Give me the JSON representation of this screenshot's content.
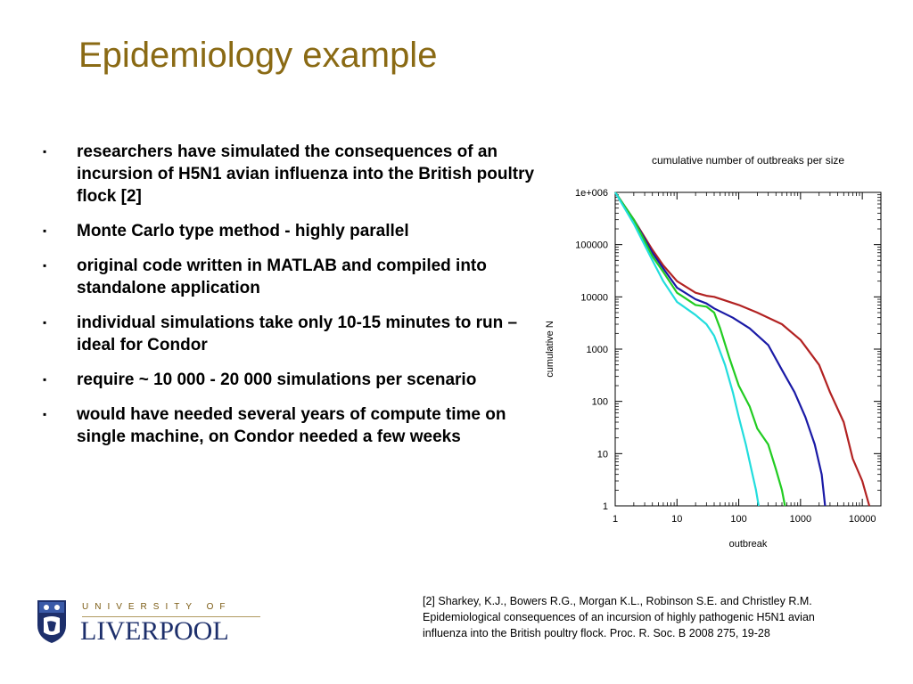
{
  "slide": {
    "title": "Epidemiology example",
    "bullets": [
      "researchers have simulated the consequences of an incursion of H5N1 avian influenza into the British poultry flock [2]",
      "Monte Carlo type method - highly parallel",
      "original code written in MATLAB and compiled into standalone application",
      "individual simulations take only 10-15 minutes to run – ideal for Condor",
      "require ~ 10 000 - 20 000 simulations per scenario",
      "would have needed several years of compute time on single machine, on Condor needed a few weeks"
    ],
    "bullet_mark": "▪",
    "reference": {
      "lines": [
        "[2] Sharkey, K.J., Bowers R.G., Morgan K.L., Robinson S.E. and Christley R.M.",
        "Epidemiological consequences of an incursion of highly pathogenic H5N1 avian",
        "influenza into the British poultry flock. Proc. R. Soc. B 2008 275, 19-28"
      ]
    },
    "logo": {
      "top_text": "UNIVERSITY OF",
      "name": "LIVERPOOL",
      "crest_icon": "liverpool-crest-icon"
    }
  },
  "chart_data": {
    "type": "line",
    "title": "cumulative number of outbreaks per size",
    "xlabel": "outbreak",
    "ylabel": "cumulative N",
    "xscale": "log",
    "yscale": "log",
    "xlim": [
      1,
      20000
    ],
    "ylim": [
      1,
      1000000
    ],
    "x_ticks": [
      1,
      10,
      100,
      1000,
      10000
    ],
    "x_tick_labels": [
      "1",
      "10",
      "100",
      "1000",
      "10000"
    ],
    "y_ticks": [
      1,
      10,
      100,
      1000,
      10000,
      100000,
      1000000
    ],
    "y_tick_labels": [
      "1",
      "10",
      "100",
      "1000",
      "10000",
      "100000",
      "1e+006"
    ],
    "grid": false,
    "legend": "none",
    "series": [
      {
        "color": "#b22222",
        "x": [
          1,
          2,
          4,
          6,
          10,
          20,
          30,
          40,
          100,
          200,
          500,
          1000,
          2000,
          3000,
          5000,
          7000,
          10000,
          13000
        ],
        "y": [
          1000000,
          300000,
          80000,
          40000,
          20000,
          12000,
          10500,
          10000,
          7000,
          5000,
          3000,
          1500,
          500,
          150,
          40,
          8,
          3,
          1
        ]
      },
      {
        "color": "#1a1aa6",
        "x": [
          1,
          2,
          4,
          6,
          10,
          20,
          30,
          40,
          80,
          150,
          300,
          500,
          800,
          1200,
          1700,
          2200,
          2500
        ],
        "y": [
          1000000,
          300000,
          70000,
          35000,
          15000,
          9000,
          7500,
          6000,
          4000,
          2500,
          1200,
          400,
          150,
          50,
          15,
          4,
          1
        ]
      },
      {
        "color": "#22cc22",
        "x": [
          1,
          2,
          4,
          6,
          10,
          20,
          30,
          40,
          50,
          70,
          100,
          150,
          200,
          300,
          400,
          500,
          560
        ],
        "y": [
          1000000,
          300000,
          60000,
          30000,
          12000,
          7000,
          6500,
          5000,
          2500,
          700,
          200,
          80,
          30,
          15,
          5,
          2,
          1
        ]
      },
      {
        "color": "#22dddd",
        "x": [
          1,
          2,
          4,
          6,
          10,
          20,
          30,
          40,
          60,
          80,
          100,
          130,
          160,
          190,
          210
        ],
        "y": [
          1000000,
          250000,
          50000,
          20000,
          8000,
          4500,
          3000,
          1800,
          500,
          150,
          50,
          15,
          5,
          2,
          1
        ]
      }
    ]
  }
}
